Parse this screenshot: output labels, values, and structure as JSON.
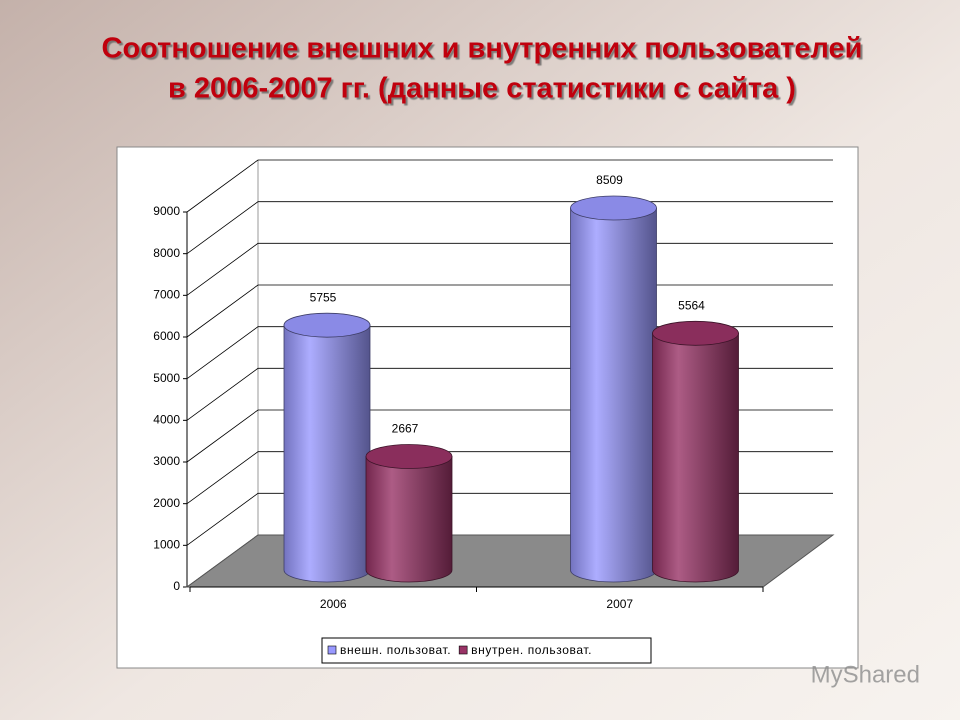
{
  "chart_data": {
    "type": "bar3d",
    "title": [
      "Соотношение внешних и внутренних пользователей",
      "в 2006-2007 гг. (данные статистики с сайта )"
    ],
    "categories": [
      "2006",
      "2007"
    ],
    "series": [
      {
        "name": "внешн. пользоват.",
        "color": "#9999ff",
        "values": [
          5755,
          8509
        ]
      },
      {
        "name": "внутрен. пользоват.",
        "color": "#993366",
        "values": [
          2667,
          5564
        ]
      }
    ],
    "ylim": [
      0,
      9000
    ],
    "yticks": [
      0,
      1000,
      2000,
      3000,
      4000,
      5000,
      6000,
      7000,
      8000,
      9000
    ],
    "grid": true,
    "legend": "bottom"
  },
  "watermark": "MyShared"
}
